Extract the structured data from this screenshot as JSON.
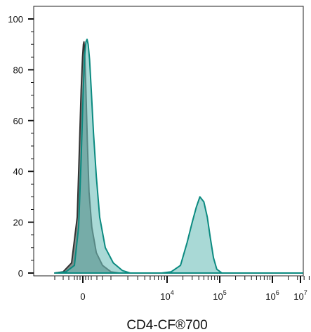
{
  "chart_data": {
    "type": "area",
    "title": "",
    "xlabel": "CD4-CF®700",
    "ylabel": "",
    "xscale": "biexponential",
    "ylim": [
      0,
      105
    ],
    "y_ticks": [
      "0",
      "20",
      "40",
      "60",
      "80",
      "100"
    ],
    "x_ticks": [
      {
        "base": "0",
        "exp": ""
      },
      {
        "base": "10",
        "exp": "4"
      },
      {
        "base": "10",
        "exp": "5"
      },
      {
        "base": "10",
        "exp": "6"
      },
      {
        "base": "10",
        "exp": "7"
      }
    ],
    "grid": false,
    "legend": "none",
    "series": [
      {
        "fill": "#6b7a78",
        "stroke": "#333333",
        "fill_opacity": 0.85,
        "points": [
          [
            -1000,
            0
          ],
          [
            -700,
            0.5
          ],
          [
            -400,
            4
          ],
          [
            -200,
            22
          ],
          [
            -120,
            50
          ],
          [
            -60,
            72
          ],
          [
            -10,
            85
          ],
          [
            20,
            90
          ],
          [
            40,
            91
          ],
          [
            70,
            86
          ],
          [
            110,
            72
          ],
          [
            160,
            52
          ],
          [
            220,
            32
          ],
          [
            320,
            18
          ],
          [
            480,
            8
          ],
          [
            700,
            3
          ],
          [
            1000,
            0.5
          ],
          [
            1400,
            0
          ]
        ]
      },
      {
        "fill": "#6fbfba",
        "stroke": "#0b8a80",
        "fill_opacity": 0.6,
        "points": [
          [
            -1000,
            0
          ],
          [
            -600,
            0.5
          ],
          [
            -300,
            3
          ],
          [
            -150,
            18
          ],
          [
            -60,
            45
          ],
          [
            10,
            70
          ],
          [
            60,
            85
          ],
          [
            110,
            91
          ],
          [
            150,
            92
          ],
          [
            190,
            90
          ],
          [
            240,
            84
          ],
          [
            300,
            72
          ],
          [
            380,
            55
          ],
          [
            480,
            38
          ],
          [
            600,
            22
          ],
          [
            800,
            10
          ],
          [
            1100,
            4
          ],
          [
            1600,
            1
          ],
          [
            2200,
            0
          ],
          [
            8000,
            0
          ],
          [
            12000,
            0.5
          ],
          [
            18000,
            3
          ],
          [
            24000,
            12
          ],
          [
            30000,
            20
          ],
          [
            36000,
            26
          ],
          [
            42000,
            30
          ],
          [
            50000,
            28
          ],
          [
            58000,
            22
          ],
          [
            66000,
            14
          ],
          [
            76000,
            6
          ],
          [
            88000,
            1.5
          ],
          [
            110000,
            0
          ],
          [
            10000000,
            0
          ]
        ]
      }
    ]
  }
}
